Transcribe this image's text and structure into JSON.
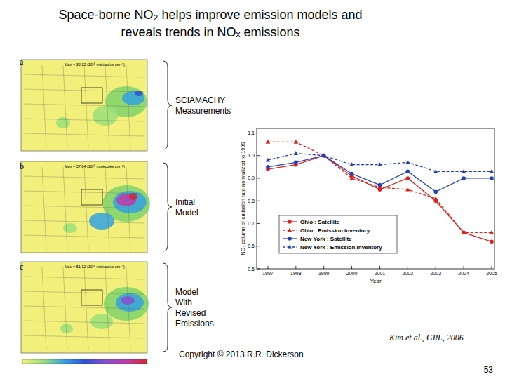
{
  "slide": {
    "title": [
      "Space-borne NO₂ helps improve emission models and",
      "reveals trends in NOₓ emissions"
    ],
    "panels": [
      {
        "letter": "a",
        "max_text": "Max = 32.32 (10¹⁵ molecules cm⁻²)",
        "label": [
          "SCIAMACHY",
          "Measurements"
        ]
      },
      {
        "letter": "b",
        "max_text": "Max = 57.04 (10¹⁵ molecules cm⁻²)",
        "label": [
          "Initial",
          "Model"
        ]
      },
      {
        "letter": "c",
        "max_text": "Max = 51.12 (10¹⁵ molecules cm⁻²)",
        "label": [
          "Model",
          "With",
          "Revised",
          "Emissions"
        ]
      }
    ],
    "citation": "Kim et al., GRL, 2006",
    "copyright": "Copyright © 2013  R.R. Dickerson",
    "page": "53"
  },
  "chart_data": {
    "type": "line",
    "x": [
      1997,
      1998,
      1999,
      2000,
      2001,
      2002,
      2003,
      2004,
      2005
    ],
    "xlim": [
      1996.6,
      2005.1
    ],
    "xticks": [
      1997,
      1998,
      1999,
      2000,
      2001,
      2002,
      2003,
      2004,
      2005
    ],
    "ylim": [
      0.5,
      1.12
    ],
    "yticks": [
      0.5,
      0.6,
      0.7,
      0.8,
      0.9,
      {
        "value": 1,
        "label": "1.0"
      },
      1.1
    ],
    "x_label": "Year",
    "y_label": "NO₂ column or emission rate normalized to 1999",
    "grid": false,
    "legend": "lower left",
    "series": [
      {
        "name": "Ohio : Satellite",
        "color": "#e3201b",
        "marker": "circle",
        "line_style": "solid",
        "values": [
          0.94,
          0.96,
          1.0,
          0.91,
          0.85,
          0.9,
          0.8,
          0.66,
          0.62
        ]
      },
      {
        "name": "Ohio : Emission inventory",
        "color": "#e3201b",
        "marker": "triangle",
        "line_style": "dashed",
        "values": [
          1.06,
          1.06,
          1.0,
          0.9,
          0.86,
          0.85,
          0.81,
          0.66,
          0.66
        ]
      },
      {
        "name": "New York : Satellite",
        "color": "#1f3fbf",
        "marker": "circle",
        "line_style": "solid",
        "values": [
          0.95,
          0.97,
          1.0,
          0.92,
          0.87,
          0.93,
          0.84,
          0.9,
          0.9
        ]
      },
      {
        "name": "New York : Emission inventory",
        "color": "#1f3fbf",
        "marker": "triangle",
        "line_style": "dashed",
        "values": [
          0.98,
          1.01,
          1.0,
          0.96,
          0.96,
          0.97,
          0.93,
          0.93,
          0.93
        ]
      }
    ]
  }
}
